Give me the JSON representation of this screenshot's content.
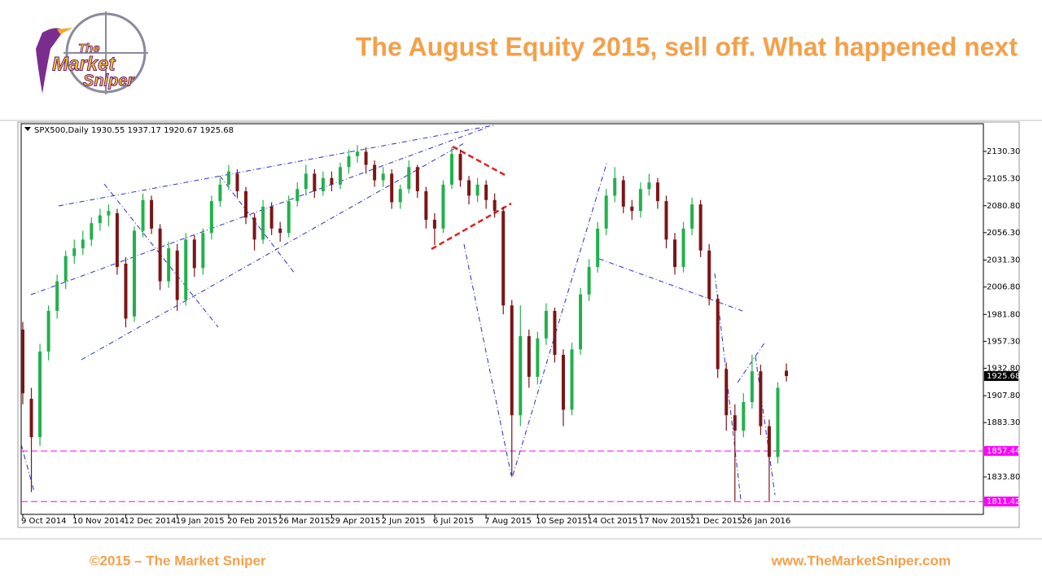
{
  "logo": {
    "line1": "The",
    "line2": "Market",
    "line3": "Sniper"
  },
  "footer": {
    "left": "©2015 – The Market Sniper",
    "right": "www.TheMarketSniper.com"
  },
  "chart_data": {
    "type": "candlestick",
    "title": "The August Equity 2015,  sell off. What happened next",
    "categories": [
      "9 Oct 2014",
      null,
      null,
      null,
      null,
      null,
      "10 Nov 2014",
      null,
      null,
      null,
      null,
      null,
      "12 Dec 2014",
      null,
      null,
      null,
      null,
      null,
      "19 Jan 2015",
      null,
      null,
      null,
      null,
      null,
      "20 Feb 2015",
      null,
      null,
      null,
      null,
      null,
      "26 Mar 2015",
      null,
      null,
      null,
      null,
      null,
      "29 Apr 2015",
      null,
      null,
      null,
      null,
      null,
      "2 Jun 2015",
      null,
      null,
      null,
      null,
      null,
      "6 Jul 2015",
      null,
      null,
      null,
      null,
      null,
      "7 Aug 2015",
      null,
      null,
      null,
      null,
      null,
      "10 Sep 2015",
      null,
      null,
      null,
      null,
      null,
      "14 Oct 2015",
      null,
      null,
      null,
      null,
      null,
      "17 Nov 2015",
      null,
      null,
      null,
      null,
      null,
      "21 Dec 2015",
      null,
      null,
      null,
      null,
      null,
      "26 Jan 2016",
      null,
      null,
      null,
      null,
      null
    ],
    "series": [
      {
        "name": "SPX500,Daily",
        "up_color": "#22b14c",
        "down_color": "#7b1616",
        "open": [
          1968,
          1905,
          1870,
          1948,
          1985,
          2012,
          2035,
          2042,
          2050,
          2065,
          2072,
          2074,
          2028,
          1980,
          2058,
          2086,
          2060,
          2012,
          2040,
          1995,
          2050,
          2024,
          2056,
          2085,
          2100,
          2110,
          2094,
          2070,
          2050,
          2080,
          2060,
          2056,
          2085,
          2096,
          2110,
          2094,
          2106,
          2100,
          2116,
          2126,
          2130,
          2118,
          2104,
          2110,
          2084,
          2096,
          2116,
          2094,
          2068,
          2060,
          2100,
          2128,
          2104,
          2090,
          2100,
          2086,
          2076,
          1990,
          1890,
          1962,
          1925,
          1960,
          1985,
          1945,
          1895,
          1950,
          2000,
          2025,
          2060,
          2090,
          2104,
          2080,
          2076,
          2096,
          2102,
          2085,
          2050,
          2025,
          2060,
          2082,
          2040,
          1996,
          1932,
          1890,
          1876,
          1902,
          1930,
          1880,
          1852,
          1930.55
        ],
        "high": [
          1975,
          1915,
          1955,
          1990,
          2018,
          2040,
          2050,
          2058,
          2070,
          2078,
          2082,
          2078,
          2034,
          2062,
          2092,
          2090,
          2064,
          2048,
          2046,
          2056,
          2054,
          2060,
          2090,
          2106,
          2118,
          2114,
          2098,
          2074,
          2086,
          2084,
          2066,
          2090,
          2102,
          2118,
          2114,
          2112,
          2112,
          2120,
          2132,
          2136,
          2134,
          2122,
          2116,
          2114,
          2100,
          2122,
          2118,
          2098,
          2074,
          2104,
          2134,
          2132,
          2108,
          2106,
          2104,
          2092,
          2080,
          1995,
          1990,
          1968,
          1966,
          1992,
          1988,
          1950,
          1956,
          2006,
          2032,
          2066,
          2096,
          2116,
          2108,
          2086,
          2102,
          2110,
          2106,
          2090,
          2056,
          2066,
          2088,
          2086,
          2046,
          2000,
          1938,
          1900,
          1910,
          1945,
          1936,
          1886,
          1920,
          1937.17
        ],
        "low": [
          1900,
          1820,
          1862,
          1940,
          1978,
          2005,
          2028,
          2036,
          2044,
          2058,
          2062,
          2018,
          1970,
          1975,
          2052,
          2055,
          2004,
          2006,
          1985,
          1990,
          2016,
          2018,
          2050,
          2080,
          2095,
          2088,
          2064,
          2040,
          2046,
          2054,
          2048,
          2052,
          2080,
          2090,
          2088,
          2090,
          2094,
          2096,
          2110,
          2120,
          2110,
          2098,
          2098,
          2078,
          2078,
          2092,
          2088,
          2060,
          2045,
          2056,
          2096,
          2098,
          2082,
          2084,
          2078,
          2070,
          1982,
          1834,
          1880,
          1915,
          1918,
          1954,
          1938,
          1880,
          1890,
          1945,
          1994,
          2020,
          2054,
          2084,
          2074,
          2068,
          2070,
          2090,
          2078,
          2042,
          2018,
          2020,
          2054,
          2034,
          1990,
          1924,
          1876,
          1812,
          1870,
          1896,
          1872,
          1812,
          1846,
          1920.67
        ],
        "close": [
          1910,
          1870,
          1948,
          1985,
          2012,
          2035,
          2042,
          2050,
          2065,
          2072,
          2076,
          2025,
          1978,
          2058,
          2086,
          2060,
          2012,
          2042,
          1995,
          2050,
          2024,
          2056,
          2085,
          2100,
          2112,
          2094,
          2070,
          2050,
          2080,
          2060,
          2056,
          2085,
          2096,
          2110,
          2094,
          2106,
          2100,
          2116,
          2126,
          2130,
          2118,
          2104,
          2110,
          2084,
          2096,
          2116,
          2094,
          2068,
          2060,
          2100,
          2128,
          2104,
          2090,
          2100,
          2086,
          2076,
          1990,
          1890,
          1962,
          1925,
          1960,
          1985,
          1945,
          1895,
          1950,
          2000,
          2025,
          2060,
          2090,
          2106,
          2080,
          2076,
          2096,
          2102,
          2085,
          2050,
          2025,
          2060,
          2082,
          2040,
          1996,
          1932,
          1890,
          1876,
          1902,
          1930,
          1880,
          1852,
          1915,
          1925.68
        ]
      }
    ],
    "levels": [
      {
        "value": 1857.44,
        "label": "1857.44",
        "color": "#ff00ff"
      },
      {
        "value": 1811.42,
        "label": "1811.42",
        "color": "#ff00ff"
      }
    ],
    "ylim": [
      1799.7,
      2155.5
    ],
    "yticks": [
      {
        "value": 2130.3,
        "label": "2130.30"
      },
      {
        "value": 2105.3,
        "label": "2105.30"
      },
      {
        "value": 2080.8,
        "label": "2080.80"
      },
      {
        "value": 2056.3,
        "label": "2056.30"
      },
      {
        "value": 2031.3,
        "label": "2031.30"
      },
      {
        "value": 2006.8,
        "label": "2006.80"
      },
      {
        "value": 1981.8,
        "label": "1981.80"
      },
      {
        "value": 1957.3,
        "label": "1957.30"
      },
      {
        "value": 1932.8,
        "label": "1932.80"
      },
      {
        "value": 1907.8,
        "label": "1907.80"
      },
      {
        "value": 1883.3,
        "label": "1883.30"
      },
      {
        "value": 1833.8,
        "label": "1833.80"
      }
    ],
    "grid": false
  }
}
